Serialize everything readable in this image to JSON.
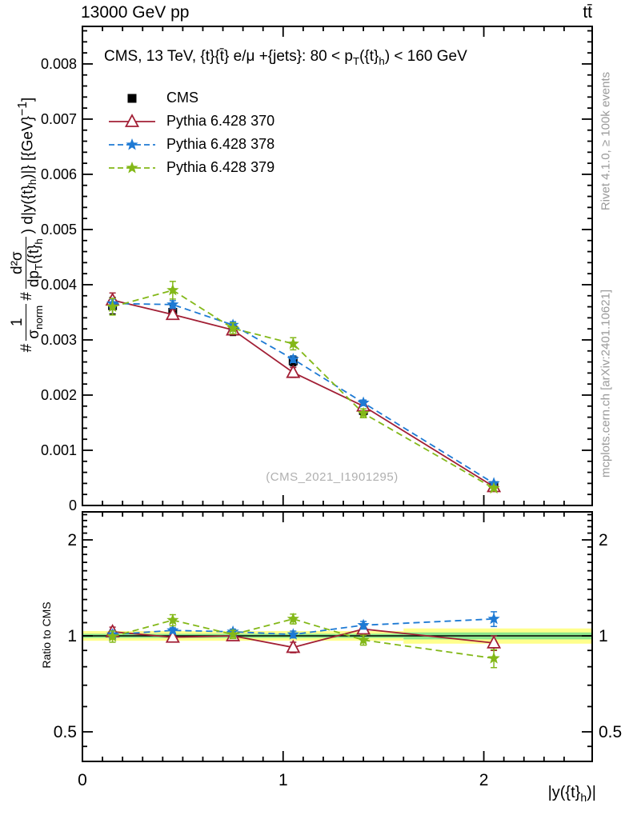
{
  "header": {
    "left": "13000 GeV pp",
    "right": "tt̄"
  },
  "panel": {
    "title": "CMS, 13 TeV, {t}{t̄} e/μ +{jets}: 80 <  p~T~({t}~h~) < 160 GeV"
  },
  "watermark": "(CMS_2021_I1901295)",
  "side_notes": {
    "top": "Rivet 4.1.0, ≥ 100k events",
    "bottom": "mcplots.cern.ch [arXiv:2401.10621]"
  },
  "axis_labels": {
    "y_prefix1": "#",
    "y_frac1_num": "1",
    "y_frac1_den": "σ~norm~",
    "y_prefix2": "#",
    "y_frac2_num": "d²σ",
    "y_frac2_den": "dp~T~({t}~h~",
    "y_rest": ") d|y({t}~h~)|} [{GeV}^−1^]",
    "x": "|y({t}~h~)|",
    "ratio": "Ratio to CMS"
  },
  "chart_data": {
    "type": "line",
    "title": "CMS, 13 TeV, ttbar e/mu +jets: 80 < pT(t_h) < 160 GeV",
    "xlabel": "|y(t_h)|",
    "ylabel": "1/sigma_norm d2sigma/(dpT(t_h) d|y(t_h)|) [GeV^-1]",
    "x_range": [
      0,
      2.54
    ],
    "y_range": [
      0,
      0.00868
    ],
    "x": [
      0.15,
      0.45,
      0.75,
      1.05,
      1.4,
      2.05
    ],
    "series": [
      {
        "name": "CMS",
        "color": "#000000",
        "marker": "square",
        "line": "none",
        "values": [
          0.00362,
          0.0035,
          0.00318,
          0.00262,
          0.00172,
          0.00036
        ],
        "errors": [
          0.00015,
          0.00012,
          0.0001,
          9e-05,
          8e-05,
          4e-05
        ]
      },
      {
        "name": "Pythia 6.428 370",
        "color": "#a21f35",
        "marker": "triangle-open",
        "line": "solid",
        "values": [
          0.00372,
          0.00346,
          0.00318,
          0.00241,
          0.0018,
          0.00034
        ],
        "errors": [
          0.00013,
          8e-05,
          7e-05,
          9e-05,
          6e-05,
          3e-05
        ]
      },
      {
        "name": "Pythia 6.428 378",
        "color": "#1e7ad4",
        "marker": "star",
        "line": "dashed",
        "values": [
          0.00366,
          0.00364,
          0.00327,
          0.00265,
          0.00186,
          0.0004
        ],
        "errors": [
          8e-05,
          7e-05,
          6e-05,
          6e-05,
          5e-05,
          3e-05
        ]
      },
      {
        "name": "Pythia 6.428 379",
        "color": "#83b818",
        "marker": "star",
        "line": "dashed",
        "values": [
          0.0036,
          0.0039,
          0.00321,
          0.00293,
          0.00167,
          0.00031
        ],
        "errors": [
          0.00015,
          0.00016,
          0.0001,
          0.00011,
          8e-05,
          4e-05
        ]
      }
    ],
    "ratio": {
      "scale": "log",
      "y_range": [
        0.403,
        2.45
      ],
      "reference": "CMS",
      "band": [
        {
          "x0": 0,
          "x1": 1.6,
          "outer": 0.035,
          "inner": 0.015
        },
        {
          "x0": 1.6,
          "x1": 2.54,
          "outer": 0.055,
          "inner": 0.025
        }
      ],
      "series": [
        {
          "ref": "Pythia 6.428 370",
          "values": [
            1.03,
            0.99,
            1.0,
            0.92,
            1.05,
            0.95
          ],
          "errors": [
            0.035,
            0.025,
            0.02,
            0.035,
            0.03,
            0.05
          ]
        },
        {
          "ref": "Pythia 6.428 378",
          "values": [
            1.01,
            1.04,
            1.03,
            1.01,
            1.08,
            1.13
          ],
          "errors": [
            0.03,
            0.02,
            0.02,
            0.025,
            0.03,
            0.06
          ]
        },
        {
          "ref": "Pythia 6.428 379",
          "values": [
            0.995,
            1.12,
            1.01,
            1.13,
            0.97,
            0.85
          ],
          "errors": [
            0.04,
            0.045,
            0.03,
            0.04,
            0.035,
            0.055
          ]
        }
      ]
    },
    "axes": {
      "x_majors": [
        {
          "v": 0,
          "label": "0"
        },
        {
          "v": 1,
          "label": "1"
        },
        {
          "v": 2,
          "label": "2"
        }
      ],
      "x_minor_step": 0.1,
      "y_major_step": 0.001,
      "y_major_labels": [
        "0",
        "0.001",
        "0.002",
        "0.003",
        "0.004",
        "0.005",
        "0.006",
        "0.007",
        "0.008"
      ],
      "y_minor_step": 0.0002,
      "ratio_majors": [
        {
          "v": 0.5,
          "label": "0.5"
        },
        {
          "v": 1,
          "label": "1"
        },
        {
          "v": 2,
          "label": "2"
        }
      ],
      "ratio_minors": [
        0.4,
        0.45,
        0.6,
        0.7,
        0.8,
        0.9,
        1.1,
        1.2,
        1.3,
        1.4,
        1.5,
        1.6,
        1.7,
        1.8,
        1.9,
        2.1,
        2.2,
        2.3,
        2.4
      ],
      "grid": false,
      "legend_position": "top-left"
    },
    "band_colors": {
      "outer": "#ffff8c",
      "inner": "#8ce68c"
    }
  }
}
